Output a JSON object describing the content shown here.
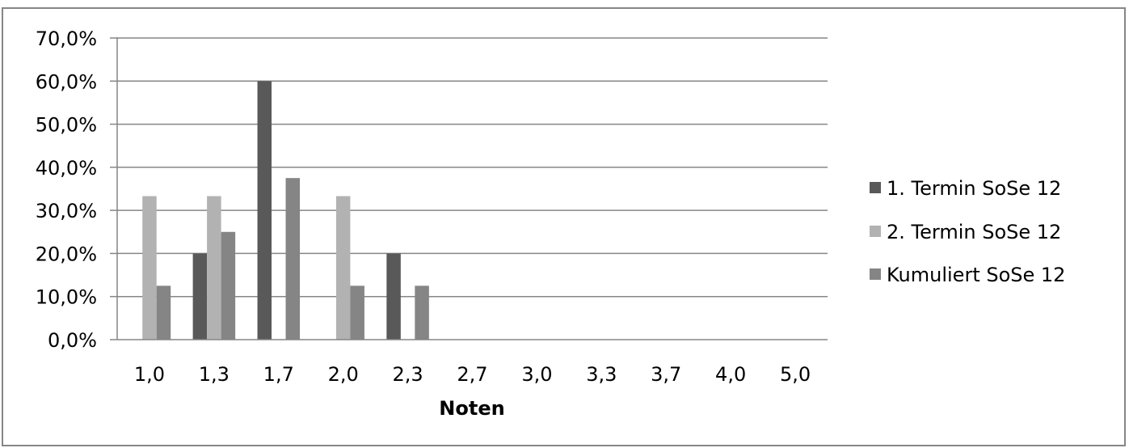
{
  "chart_data": {
    "type": "bar",
    "title": "",
    "xlabel": "Noten",
    "ylabel": "",
    "categories": [
      "1,0",
      "1,3",
      "1,7",
      "2,0",
      "2,3",
      "2,7",
      "3,0",
      "3,3",
      "3,7",
      "4,0",
      "5,0"
    ],
    "y_ticks": [
      "0,0%",
      "10,0%",
      "20,0%",
      "30,0%",
      "40,0%",
      "50,0%",
      "60,0%",
      "70,0%"
    ],
    "ylim": [
      0,
      70
    ],
    "grid": true,
    "legend_position": "right",
    "series": [
      {
        "name": "1. Termin SoSe 12",
        "color": "#595959",
        "values": [
          0,
          20,
          60,
          0,
          20,
          0,
          0,
          0,
          0,
          0,
          0
        ]
      },
      {
        "name": "2. Termin SoSe 12",
        "color": "#b2b2b2",
        "values": [
          33.3,
          33.3,
          0,
          33.3,
          0,
          0,
          0,
          0,
          0,
          0,
          0
        ]
      },
      {
        "name": "Kumuliert SoSe 12",
        "color": "#858585",
        "values": [
          12.5,
          25,
          37.5,
          12.5,
          12.5,
          0,
          0,
          0,
          0,
          0,
          0
        ]
      }
    ]
  }
}
